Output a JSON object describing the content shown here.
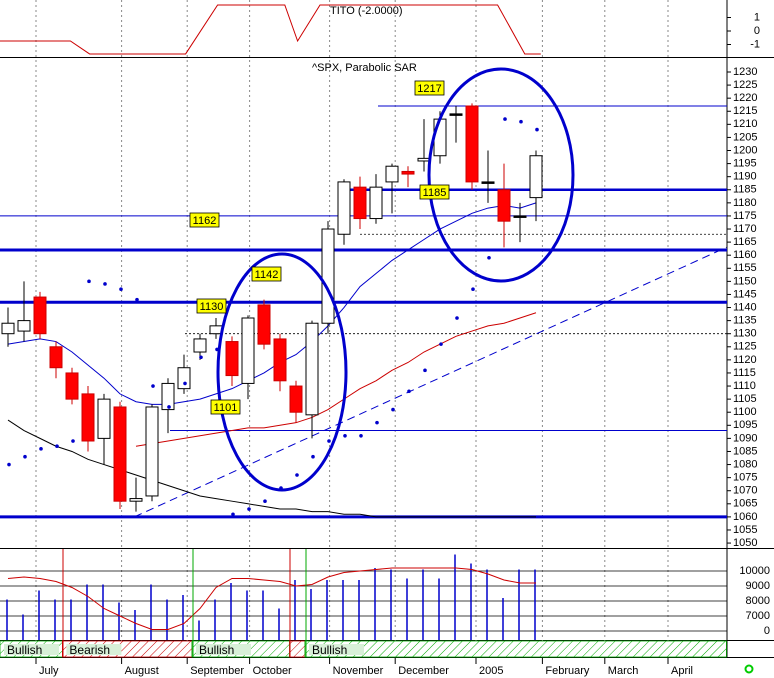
{
  "chart_data": {
    "type": "candlestick",
    "title": "^SPX, Parabolic SAR",
    "candles": {
      "open": [
        1130,
        1131,
        1144,
        1125,
        1115,
        1107,
        1090,
        1102,
        1066,
        1068,
        1101,
        1109,
        1123,
        1130,
        1127,
        1111,
        1141,
        1128,
        1110,
        1099,
        1134,
        1168,
        1186,
        1174,
        1188,
        1192,
        1196,
        1198,
        1214,
        1217,
        1188,
        1185,
        1175,
        1182
      ],
      "high": [
        1140,
        1150,
        1146,
        1127,
        1117,
        1110,
        1107,
        1104,
        1075,
        1103,
        1113,
        1122,
        1130,
        1136,
        1129,
        1137,
        1143,
        1130,
        1112,
        1135,
        1173,
        1189,
        1190,
        1191,
        1195,
        1194,
        1212,
        1215,
        1217,
        1218,
        1200,
        1195,
        1180,
        1200
      ],
      "low": [
        1125,
        1127,
        1128,
        1113,
        1103,
        1085,
        1080,
        1063,
        1062,
        1066,
        1092,
        1107,
        1120,
        1128,
        1110,
        1105,
        1124,
        1108,
        1096,
        1090,
        1130,
        1164,
        1170,
        1172,
        1176,
        1186,
        1192,
        1195,
        1203,
        1185,
        1180,
        1163,
        1165,
        1173
      ],
      "close": [
        1134,
        1135,
        1130,
        1117,
        1105,
        1089,
        1105,
        1066,
        1067,
        1102,
        1111,
        1117,
        1128,
        1133,
        1114,
        1136,
        1126,
        1112,
        1100,
        1134,
        1170,
        1188,
        1174,
        1186,
        1194,
        1191,
        1197,
        1212,
        1214,
        1188,
        1188,
        1173,
        1175,
        1198
      ]
    },
    "sar": [
      1080,
      1083,
      1086,
      1087,
      1089,
      1150,
      1149,
      1147,
      1143,
      1110,
      1102,
      1111,
      1121,
      1124,
      1061,
      1063,
      1066,
      1071,
      1076,
      1083,
      1089,
      1091,
      1091,
      1096,
      1101,
      1108,
      1116,
      1126,
      1136,
      1147,
      1159,
      1212,
      1211,
      1208
    ],
    "series": [
      {
        "color": "#0000cc",
        "values": [
          1126,
          1127,
          1128,
          1127,
          1123,
          1118,
          1113,
          1107,
          1104,
          1103,
          1103,
          1104,
          1105,
          1107,
          1109,
          1112,
          1115,
          1119,
          1122,
          1127,
          1133,
          1140,
          1148,
          1153,
          1158,
          1162,
          1166,
          1170,
          1173,
          1176,
          1178,
          1179,
          1178,
          1180
        ]
      },
      {
        "color": "#cc0000",
        "values": [
          null,
          null,
          null,
          null,
          null,
          null,
          null,
          null,
          1087,
          1088,
          1089,
          1090,
          1091,
          1092,
          1093,
          1094,
          1094,
          1095,
          1096,
          1098,
          1101,
          1105,
          1109,
          1112,
          1116,
          1119,
          1123,
          1126,
          1129,
          1131,
          1133,
          1134,
          1136,
          1138
        ]
      },
      {
        "color": "#000000",
        "values": [
          1097,
          1093,
          1090,
          1087,
          1085,
          1082,
          1080,
          1078,
          1076,
          1074,
          1072,
          1070,
          1068,
          1067,
          1066,
          1065,
          1064,
          1063,
          1063,
          1062,
          1062,
          1061,
          1061,
          1060,
          1060,
          1060,
          1060,
          1060,
          1060,
          1060,
          1060,
          1060,
          1060,
          1060
        ]
      }
    ],
    "hlines": [
      1217,
      1185,
      1175,
      1168,
      1162,
      1142,
      1130,
      1093,
      1060
    ],
    "annotations": [
      1217,
      1185,
      1162,
      1142,
      1130,
      1101
    ],
    "trendline": {
      "x": [
        7.9,
        44.9
      ],
      "y": [
        1060,
        1163
      ]
    },
    "ylim": [
      1045,
      1235
    ],
    "yticks": [
      1230,
      1225,
      1220,
      1215,
      1210,
      1205,
      1200,
      1195,
      1190,
      1185,
      1180,
      1175,
      1170,
      1165,
      1160,
      1155,
      1150,
      1145,
      1140,
      1135,
      1130,
      1125,
      1120,
      1115,
      1110,
      1105,
      1100,
      1095,
      1090,
      1085,
      1080,
      1075,
      1070,
      1065,
      1060,
      1055,
      1050
    ],
    "xticks": [
      {
        "value": 1.75,
        "label": "July"
      },
      {
        "value": 7.1,
        "label": "August"
      },
      {
        "value": 11.2,
        "label": "September"
      },
      {
        "value": 15.1,
        "label": "October"
      },
      {
        "value": 20.1,
        "label": "November"
      },
      {
        "value": 24.2,
        "label": "December"
      },
      {
        "value": 29.25,
        "label": "2005"
      },
      {
        "value": 33.4,
        "label": "February"
      },
      {
        "value": 37.3,
        "label": "March"
      },
      {
        "value": 41.25,
        "label": "April"
      }
    ],
    "tito": {
      "title": "TITO (-2.0000)",
      "x": [
        -0.5,
        3.9,
        5.1,
        11.1,
        13.1,
        17.3,
        18.1,
        19.5,
        30.6,
        32.3,
        33.3
      ],
      "values": [
        -0.74,
        -0.74,
        -1.7,
        -1.7,
        1.93,
        1.93,
        -0.74,
        1.93,
        1.93,
        -1.7,
        -1.7
      ],
      "color": "#cc0000",
      "yticks": [
        1,
        0,
        -1
      ]
    },
    "volume": {
      "color": "#0000cc",
      "values": [
        8100,
        7100,
        8700,
        8100,
        8100,
        9100,
        9100,
        7900,
        7400,
        9100,
        8100,
        8400,
        6700,
        8100,
        9200,
        8700,
        8700,
        7500,
        9400,
        8800,
        9400,
        9400,
        9400,
        10200,
        10100,
        9500,
        10100,
        9500,
        11100,
        10500,
        10100,
        8200,
        10100,
        10100
      ],
      "stochastic": [
        9500,
        9600,
        9500,
        9300,
        8900,
        8300,
        7500,
        7000,
        6500,
        6100,
        6100,
        6500,
        7500,
        8900,
        9500,
        9500,
        9400,
        9300,
        9000,
        9100,
        9600,
        9900,
        10000,
        10100,
        10200,
        10200,
        10200,
        10200,
        10200,
        10100,
        9800,
        9400,
        9200,
        9200
      ],
      "stochastic_color": "#cc0000",
      "yticks": [
        10000,
        9000,
        8000,
        7000,
        {
          "value": 6000,
          "label": "0"
        }
      ]
    },
    "regimes": [
      {
        "label": "Bullish",
        "start": -0.5,
        "end": 3.4,
        "color": "#00aa00"
      },
      {
        "label": "Bearish",
        "start": 3.4,
        "end": 11.5,
        "color": "#cc0000"
      },
      {
        "label": "Bullish",
        "start": 11.5,
        "end": 17.6,
        "color": "#00aa00"
      },
      {
        "label": null,
        "start": 17.6,
        "end": 18.56,
        "color": "#cc0000"
      },
      {
        "label": "Bullish",
        "start": 18.56,
        "end": 44.9,
        "color": "#00aa00"
      }
    ]
  }
}
